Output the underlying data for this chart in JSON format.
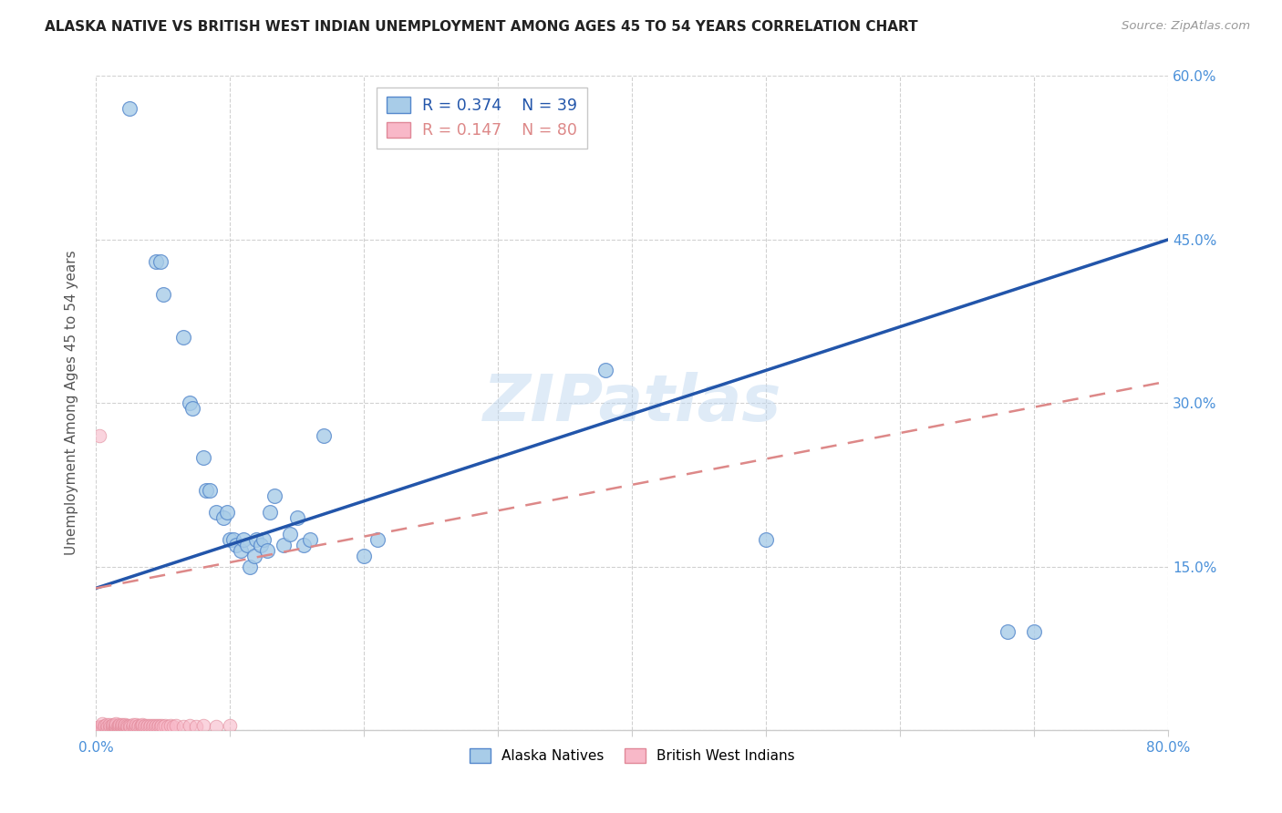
{
  "title": "ALASKA NATIVE VS BRITISH WEST INDIAN UNEMPLOYMENT AMONG AGES 45 TO 54 YEARS CORRELATION CHART",
  "source": "Source: ZipAtlas.com",
  "ylabel": "Unemployment Among Ages 45 to 54 years",
  "xlim": [
    0,
    0.8
  ],
  "ylim": [
    0,
    0.6
  ],
  "ytick_positions": [
    0.0,
    0.15,
    0.3,
    0.45,
    0.6
  ],
  "ytick_labels": [
    "",
    "15.0%",
    "30.0%",
    "45.0%",
    "60.0%"
  ],
  "xtick_positions": [
    0.0,
    0.1,
    0.2,
    0.3,
    0.4,
    0.5,
    0.6,
    0.7,
    0.8
  ],
  "xtick_labels": [
    "0.0%",
    "",
    "",
    "",
    "",
    "",
    "",
    "",
    "80.0%"
  ],
  "alaska_R": 0.374,
  "alaska_N": 39,
  "bwi_R": 0.147,
  "bwi_N": 80,
  "alaska_scatter_color": "#a8cce8",
  "alaska_edge_color": "#5588cc",
  "bwi_scatter_color": "#f8b8c8",
  "bwi_edge_color": "#e08898",
  "alaska_line_color": "#2255aa",
  "bwi_line_color": "#dd8888",
  "watermark": "ZIPatlas",
  "bg_color": "#ffffff",
  "grid_color": "#cccccc",
  "axis_label_color": "#4a90d9",
  "title_color": "#222222",
  "source_color": "#999999",
  "ylabel_color": "#555555",
  "alaska_x": [
    0.025,
    0.045,
    0.048,
    0.05,
    0.065,
    0.07,
    0.072,
    0.08,
    0.082,
    0.085,
    0.09,
    0.095,
    0.098,
    0.1,
    0.103,
    0.105,
    0.108,
    0.11,
    0.113,
    0.115,
    0.118,
    0.12,
    0.123,
    0.125,
    0.128,
    0.13,
    0.133,
    0.14,
    0.145,
    0.15,
    0.155,
    0.16,
    0.17,
    0.2,
    0.21,
    0.38,
    0.5,
    0.68,
    0.7
  ],
  "alaska_y": [
    0.57,
    0.43,
    0.43,
    0.4,
    0.36,
    0.3,
    0.295,
    0.25,
    0.22,
    0.22,
    0.2,
    0.195,
    0.2,
    0.175,
    0.175,
    0.17,
    0.165,
    0.175,
    0.17,
    0.15,
    0.16,
    0.175,
    0.17,
    0.175,
    0.165,
    0.2,
    0.215,
    0.17,
    0.18,
    0.195,
    0.17,
    0.175,
    0.27,
    0.16,
    0.175,
    0.33,
    0.175,
    0.09,
    0.09
  ],
  "bwi_x": [
    0.002,
    0.003,
    0.004,
    0.005,
    0.005,
    0.006,
    0.007,
    0.008,
    0.008,
    0.009,
    0.01,
    0.01,
    0.011,
    0.012,
    0.012,
    0.013,
    0.013,
    0.014,
    0.014,
    0.015,
    0.015,
    0.015,
    0.016,
    0.017,
    0.017,
    0.018,
    0.018,
    0.019,
    0.019,
    0.02,
    0.02,
    0.021,
    0.021,
    0.022,
    0.022,
    0.023,
    0.023,
    0.024,
    0.025,
    0.025,
    0.026,
    0.027,
    0.028,
    0.028,
    0.029,
    0.03,
    0.03,
    0.031,
    0.032,
    0.033,
    0.034,
    0.035,
    0.035,
    0.036,
    0.037,
    0.038,
    0.039,
    0.04,
    0.041,
    0.042,
    0.043,
    0.044,
    0.045,
    0.046,
    0.047,
    0.048,
    0.049,
    0.05,
    0.052,
    0.054,
    0.056,
    0.058,
    0.06,
    0.065,
    0.07,
    0.075,
    0.08,
    0.09,
    0.1,
    0.003
  ],
  "bwi_y": [
    0.002,
    0.003,
    0.002,
    0.003,
    0.006,
    0.003,
    0.004,
    0.002,
    0.005,
    0.003,
    0.002,
    0.005,
    0.003,
    0.002,
    0.004,
    0.003,
    0.005,
    0.002,
    0.004,
    0.002,
    0.004,
    0.006,
    0.003,
    0.002,
    0.004,
    0.003,
    0.005,
    0.002,
    0.004,
    0.003,
    0.005,
    0.002,
    0.004,
    0.003,
    0.005,
    0.002,
    0.004,
    0.003,
    0.002,
    0.004,
    0.003,
    0.002,
    0.003,
    0.005,
    0.002,
    0.003,
    0.005,
    0.003,
    0.004,
    0.003,
    0.004,
    0.003,
    0.005,
    0.003,
    0.004,
    0.003,
    0.004,
    0.003,
    0.004,
    0.003,
    0.004,
    0.003,
    0.004,
    0.003,
    0.004,
    0.003,
    0.004,
    0.003,
    0.004,
    0.003,
    0.004,
    0.003,
    0.004,
    0.003,
    0.004,
    0.003,
    0.004,
    0.003,
    0.004,
    0.27
  ],
  "alaska_line_x0": 0.0,
  "alaska_line_y0": 0.13,
  "alaska_line_x1": 0.8,
  "alaska_line_y1": 0.45,
  "bwi_line_x0": 0.0,
  "bwi_line_y0": 0.13,
  "bwi_line_x1": 0.8,
  "bwi_line_y1": 0.32
}
